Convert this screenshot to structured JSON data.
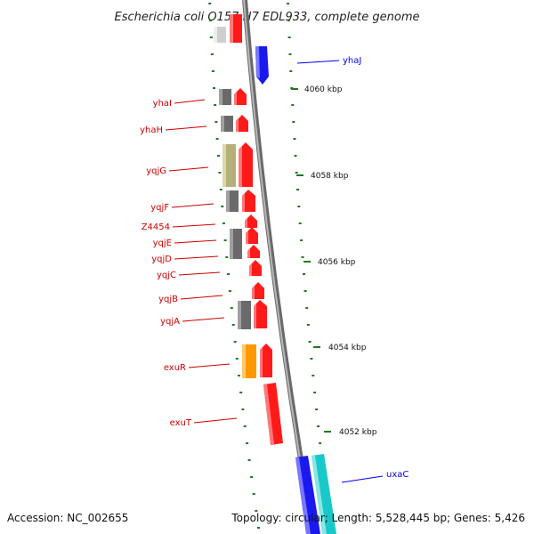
{
  "title": "Escherichia coli O157:H7 EDL933, complete genome",
  "footer": {
    "accession": "Accession: NC_002655",
    "topology": "Topology: circular; Length: 5,528,445 bp; Genes: 5,426"
  },
  "colors": {
    "background": "#ffffff",
    "backbone": "#888888",
    "tick": "#1e7a1e",
    "forward_gene": "#ff0000",
    "reverse_gene_label": "#cc0000",
    "blue_gene": "#0000ee",
    "cyan_gene": "#19c8c8",
    "gray_gene": "#777777",
    "olive_gene": "#b5b07a",
    "orange_gene": "#ff9900"
  },
  "scale_labels": [
    "4060 kbp",
    "4058 kbp",
    "4056 kbp",
    "4054 kbp",
    "4052 kbp"
  ],
  "gene_labels_left": [
    "yhaI",
    "yhaH",
    "yqjG",
    "yqjF",
    "Z4454",
    "yqjE",
    "yqjD",
    "yqjC",
    "yqjB",
    "yqjA",
    "exuR",
    "exuT"
  ],
  "gene_labels_right": [
    "yhaJ",
    "uxaC"
  ]
}
